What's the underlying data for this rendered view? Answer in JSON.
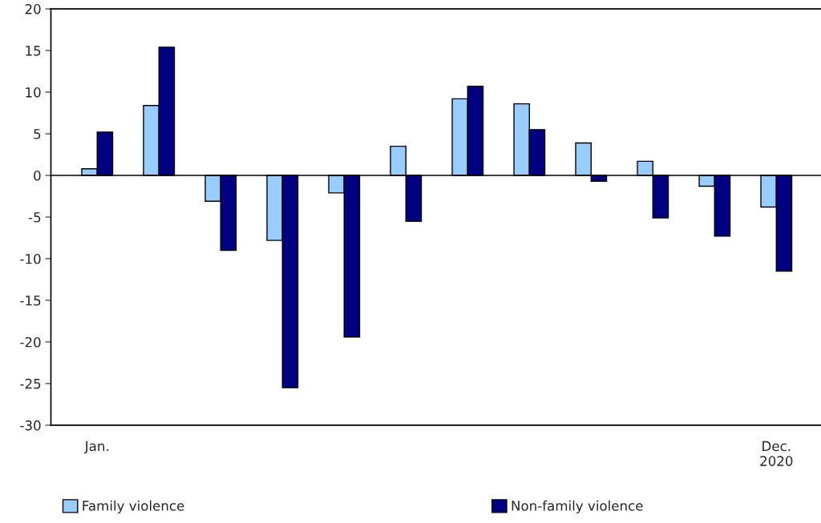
{
  "chart_data": {
    "type": "bar",
    "categories": [
      "Jan.",
      null,
      null,
      null,
      null,
      null,
      null,
      null,
      null,
      null,
      null,
      "Dec.\n2020"
    ],
    "series": [
      {
        "name": "Family violence",
        "color": "#99ccff",
        "values": [
          0.8,
          8.4,
          -3.1,
          -7.8,
          -2.1,
          3.5,
          9.2,
          8.6,
          3.9,
          1.7,
          -1.3,
          -3.8
        ]
      },
      {
        "name": "Non-family violence",
        "color": "#000080",
        "values": [
          5.2,
          15.4,
          -9.0,
          -25.5,
          -19.4,
          -5.5,
          10.7,
          5.5,
          -0.7,
          -5.1,
          -7.3,
          -11.5
        ]
      }
    ],
    "ylim": [
      -30,
      20
    ],
    "yticks": [
      -30,
      -25,
      -20,
      -15,
      -10,
      -5,
      0,
      5,
      10,
      15,
      20
    ],
    "ref_lines": [
      {
        "axis": "y",
        "value": 0,
        "color": "#000000"
      }
    ],
    "grid": false,
    "legend": "bottom"
  }
}
